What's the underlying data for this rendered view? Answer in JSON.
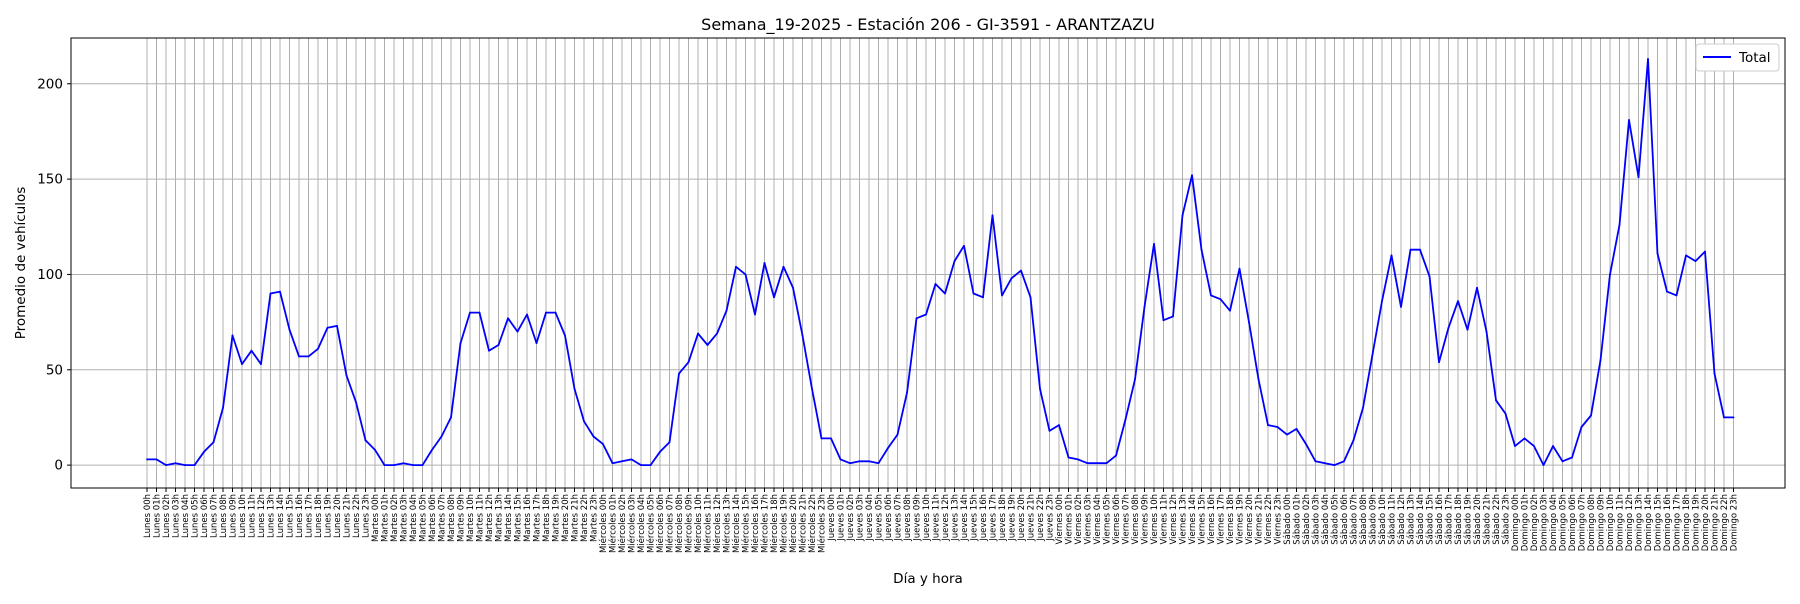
{
  "chart_data": {
    "type": "line",
    "title": "Semana_19-2025 - Estación 206 - GI-3591  - ARANTZAZU",
    "xlabel": "Día y hora",
    "ylabel": "Promedio de vehículos",
    "ylim": [
      -12,
      224
    ],
    "yticks": [
      0,
      50,
      100,
      150,
      200
    ],
    "grid": true,
    "legend_position": "top-right",
    "days": [
      "Lunes",
      "Martes",
      "Miércoles",
      "Jueves",
      "Viernes",
      "Sábado",
      "Domingo"
    ],
    "series": [
      {
        "name": "Total",
        "color": "#0000ff",
        "values": [
          3,
          3,
          0,
          1,
          0,
          0,
          7,
          12,
          30,
          68,
          53,
          60,
          53,
          90,
          91,
          71,
          57,
          57,
          61,
          72,
          73,
          47,
          33,
          13,
          8,
          0,
          0,
          1,
          0,
          0,
          8,
          15,
          25,
          64,
          80,
          80,
          60,
          63,
          77,
          70,
          79,
          64,
          80,
          80,
          68,
          40,
          23,
          15,
          11,
          1,
          2,
          3,
          0,
          0,
          7,
          12,
          48,
          54,
          69,
          63,
          69,
          81,
          104,
          100,
          79,
          106,
          88,
          104,
          93,
          68,
          40,
          14,
          14,
          3,
          1,
          2,
          2,
          1,
          9,
          16,
          38,
          77,
          79,
          95,
          90,
          107,
          115,
          90,
          88,
          131,
          89,
          98,
          102,
          88,
          40,
          18,
          21,
          4,
          3,
          1,
          1,
          1,
          5,
          24,
          45,
          83,
          116,
          76,
          78,
          131,
          152,
          113,
          89,
          87,
          81,
          103,
          75,
          45,
          21,
          20,
          16,
          19,
          11,
          2,
          1,
          0,
          2,
          13,
          30,
          58,
          86,
          110,
          83,
          113,
          113,
          99,
          54,
          72,
          86,
          71,
          93,
          70,
          34,
          27,
          10,
          14,
          10,
          0,
          10,
          2,
          4,
          20,
          26,
          55,
          100,
          126,
          181,
          151,
          213,
          111,
          91,
          89,
          110,
          107,
          112,
          48,
          25,
          25
        ]
      }
    ]
  }
}
